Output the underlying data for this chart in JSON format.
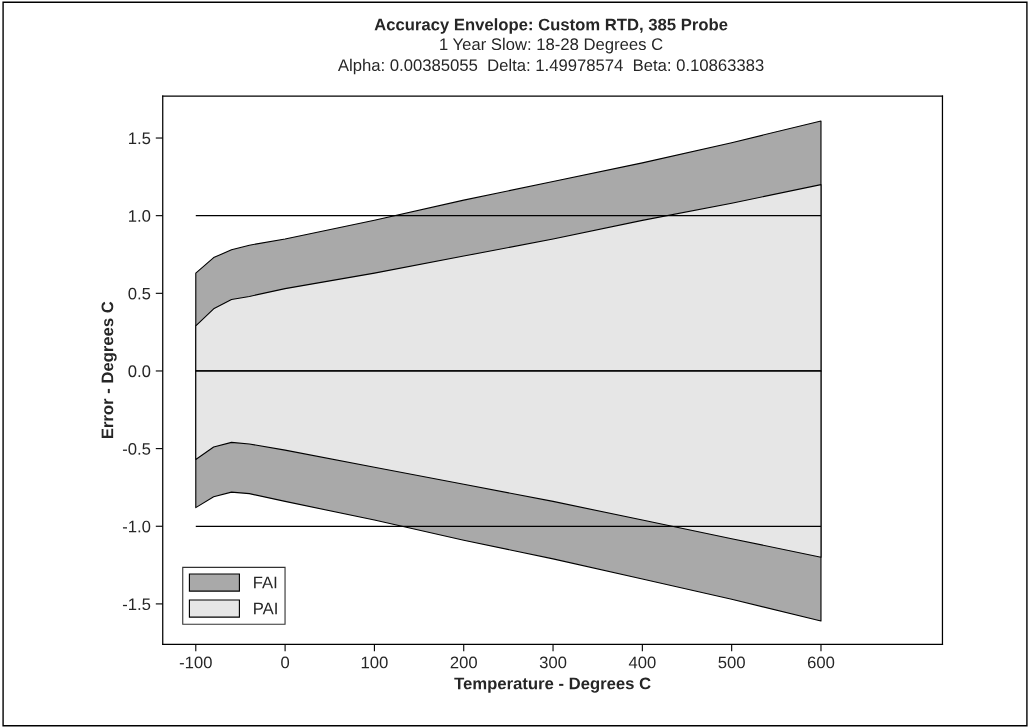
{
  "chart_data": {
    "type": "area",
    "title": "Accuracy Envelope: Custom RTD, 385 Probe",
    "subtitle": "1 Year Slow: 18-28 Degrees C\nAlpha: 0.00385055  Delta: 1.49978574  Beta: 0.10863383",
    "xlabel": "Temperature - Degrees C",
    "ylabel": "Error - Degrees C",
    "x": [
      -100,
      -80,
      -60,
      -40,
      0,
      100,
      200,
      300,
      400,
      500,
      600
    ],
    "series": [
      {
        "name": "FAI",
        "color": "#a9a9a9",
        "values": [
          0.63,
          0.73,
          0.78,
          0.81,
          0.85,
          0.97,
          1.1,
          1.22,
          1.34,
          1.47,
          1.61
        ]
      },
      {
        "color": "#a9a9a9",
        "values": [
          -0.88,
          -0.81,
          -0.78,
          -0.79,
          -0.84,
          -0.96,
          -1.09,
          -1.21,
          -1.34,
          -1.47,
          -1.61
        ]
      },
      {
        "name": "PAI",
        "color": "#e6e6e6",
        "values": [
          0.29,
          0.4,
          0.46,
          0.48,
          0.53,
          0.63,
          0.74,
          0.85,
          0.97,
          1.08,
          1.2
        ]
      },
      {
        "color": "#e6e6e6",
        "values": [
          -0.57,
          -0.49,
          -0.46,
          -0.47,
          -0.51,
          -0.62,
          -0.73,
          -0.84,
          -0.96,
          -1.08,
          -1.2
        ]
      }
    ],
    "ref_lines": [
      {
        "axis": "y",
        "value": 1.0,
        "color": "#000000"
      },
      {
        "axis": "y",
        "value": 0.0,
        "color": "#000000"
      },
      {
        "axis": "y",
        "value": -1.0,
        "color": "#000000"
      }
    ],
    "xlim": [
      -137,
      736
    ],
    "xticks": [
      -100,
      0,
      100,
      200,
      300,
      400,
      500,
      600
    ],
    "ylim": [
      -1.76,
      1.77
    ],
    "yticks": [
      {
        "value": -1.5,
        "label": "-1.5"
      },
      {
        "value": -1.0,
        "label": "-1.0"
      },
      {
        "value": -0.5,
        "label": "-0.5"
      },
      {
        "value": 0.0,
        "label": "0.0"
      },
      {
        "value": 0.5,
        "label": "0.5"
      },
      {
        "value": 1.0,
        "label": "1.0"
      },
      {
        "value": 1.5,
        "label": "1.5"
      }
    ],
    "grid": false,
    "legend": "bottom left"
  }
}
